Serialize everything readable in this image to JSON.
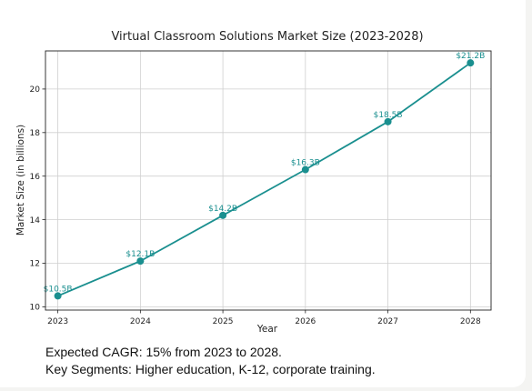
{
  "chart_data": {
    "type": "line",
    "title": "Virtual Classroom Solutions Market Size (2023-2028)",
    "xlabel": "Year",
    "ylabel": "Market Size (in billions)",
    "x": [
      2023,
      2024,
      2025,
      2026,
      2027,
      2028
    ],
    "x_tick_labels": [
      "2023",
      "2024",
      "2025",
      "2026",
      "2027",
      "2028"
    ],
    "xlim": [
      2022.85,
      2028.25
    ],
    "ylim": [
      9.85,
      21.75
    ],
    "y_ticks": [
      10,
      12,
      14,
      16,
      18,
      20
    ],
    "y_tick_labels": [
      "10",
      "12",
      "14",
      "16",
      "18",
      "20"
    ],
    "grid": true,
    "series": [
      {
        "values": [
          10.5,
          12.1,
          14.2,
          16.3,
          18.5,
          21.2
        ],
        "data_labels": [
          "$10.5B",
          "$12.1B",
          "$14.2B",
          "$16.3B",
          "$18.5B",
          "$21.2B"
        ],
        "color": "#1a8f8f",
        "marker": "circle"
      }
    ]
  },
  "notes": {
    "line1": "Expected CAGR: 15% from 2023 to 2028.",
    "line2": "Key Segments: Higher education, K-12, corporate training."
  }
}
